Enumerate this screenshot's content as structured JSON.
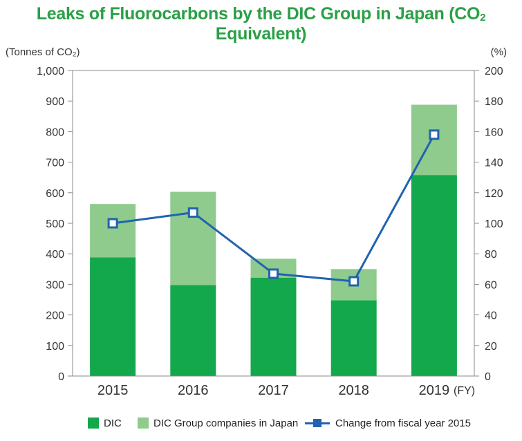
{
  "title_main": "Leaks of Fluorocarbons by the DIC Group in Japan (CO",
  "title_sub": "2",
  "title_tail": " Equivalent)",
  "colors": {
    "title": "#2aa046",
    "dic": "#13a84b",
    "group": "#8fcb8c",
    "line": "#1f63b0",
    "marker_fill": "#ffffff",
    "axis": "#8a8a8a"
  },
  "chart_data": {
    "type": "bar",
    "stacked": true,
    "categories": [
      "2015",
      "2016",
      "2017",
      "2018",
      "2019"
    ],
    "x_unit_label": "(FY)",
    "series": [
      {
        "name": "DIC",
        "values": [
          388,
          298,
          322,
          248,
          658
        ]
      },
      {
        "name": "DIC Group companies in Japan",
        "values": [
          175,
          305,
          62,
          102,
          230
        ]
      }
    ],
    "line_series": {
      "name": "Change from fiscal year 2015",
      "axis": "right",
      "values": [
        100,
        107,
        67,
        62,
        158
      ]
    },
    "y_left": {
      "label": "(Tonnes of CO₂)",
      "ylim": [
        0,
        1000
      ],
      "ticks": [
        0,
        100,
        200,
        300,
        400,
        500,
        600,
        700,
        800,
        900,
        1000
      ],
      "tick_labels": [
        "0",
        "100",
        "200",
        "300",
        "400",
        "500",
        "600",
        "700",
        "800",
        "900",
        "1,000"
      ]
    },
    "y_right": {
      "label": "(%)",
      "ylim": [
        0,
        200
      ],
      "ticks": [
        0,
        20,
        40,
        60,
        80,
        100,
        120,
        140,
        160,
        180,
        200
      ],
      "tick_labels": [
        "0",
        "20",
        "40",
        "60",
        "80",
        "100",
        "120",
        "140",
        "160",
        "180",
        "200"
      ]
    },
    "grid": false,
    "legend_position": "bottom"
  }
}
